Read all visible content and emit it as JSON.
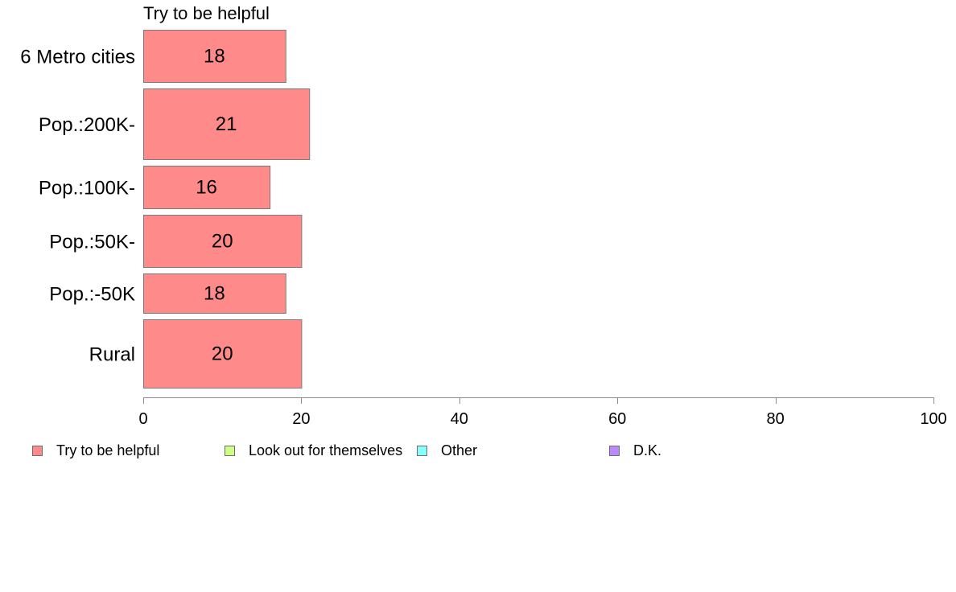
{
  "chart_data": {
    "type": "bar",
    "orientation": "horizontal",
    "title": "Try to be helpful",
    "categories": [
      "6 Metro cities",
      "Pop.:200K-",
      "Pop.:100K-",
      "Pop.:50K-",
      "Pop.:-50K",
      "Rural"
    ],
    "series": [
      {
        "name": "Try to be helpful",
        "values": [
          18,
          21,
          16,
          20,
          18,
          20
        ]
      }
    ],
    "data_labels": [
      "18",
      "21",
      "16",
      "20",
      "18",
      "20"
    ],
    "xlim": [
      0,
      100
    ],
    "x_ticks": [
      0,
      20,
      40,
      60,
      80,
      100
    ],
    "x_tick_labels": [
      "0",
      "20",
      "40",
      "60",
      "80",
      "100"
    ],
    "grid": false,
    "legend_position": "bottom",
    "legend": [
      {
        "label": "Try to be helpful",
        "color": "#ff8a8a"
      },
      {
        "label": "Look out for themselves",
        "color": "#ccff88"
      },
      {
        "label": "Other",
        "color": "#88ffff"
      },
      {
        "label": "D.K.",
        "color": "#bb88ff"
      }
    ],
    "colors": {
      "bar": "#ff8a8a",
      "bar_border": "#7a7a7a",
      "axis": "#8c8c8c"
    }
  }
}
